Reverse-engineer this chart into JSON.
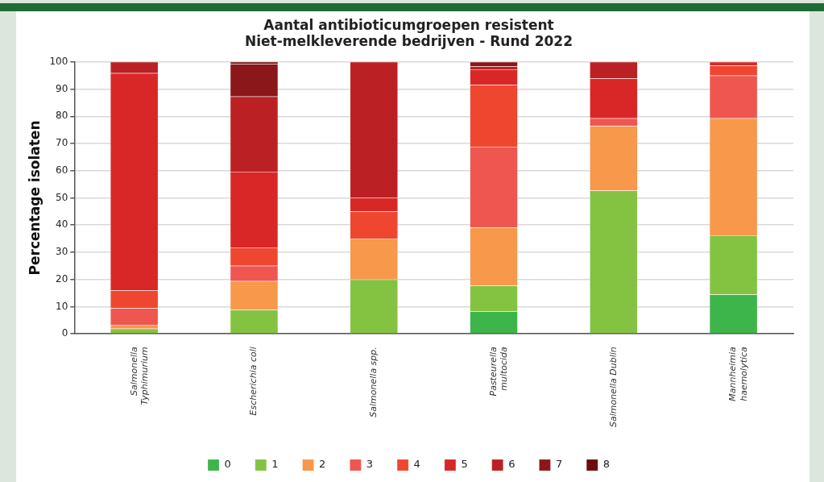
{
  "chart_data": {
    "type": "bar",
    "title": [
      "Aantal antibioticumgroepen resistent",
      "Niet-melkleverende bedrijven - Rund 2022"
    ],
    "ylabel": "Percentage isolaten",
    "categories": [
      "Salmonella Typhimurium",
      "Escherichia coli",
      "Salmonella spp.",
      "Pasteurella multocida",
      "Salmonella Dublin",
      "Mannheimia haemolytica"
    ],
    "stacked": true,
    "ylim": [
      0,
      100
    ],
    "yticks": [
      0,
      10,
      20,
      30,
      40,
      50,
      60,
      70,
      80,
      90,
      100
    ],
    "grid": "y",
    "legend": "bottom",
    "series": [
      {
        "name": "0",
        "color": "#3db54a",
        "values": [
          0,
          0,
          0,
          8.3,
          0,
          14.4
        ]
      },
      {
        "name": "1",
        "color": "#84c341",
        "values": [
          1.9,
          8.9,
          20,
          9.4,
          52.7,
          21.8
        ]
      },
      {
        "name": "2",
        "color": "#f7984b",
        "values": [
          1.4,
          10.5,
          15,
          21.4,
          23.7,
          43.1
        ]
      },
      {
        "name": "3",
        "color": "#ef5650",
        "values": [
          6.1,
          5.6,
          0,
          29.7,
          2.9,
          15.7
        ]
      },
      {
        "name": "4",
        "color": "#ef4630",
        "values": [
          6.5,
          6.8,
          10,
          22.7,
          0,
          3.7
        ]
      },
      {
        "name": "5",
        "color": "#d92727",
        "values": [
          80,
          27.8,
          5,
          5.8,
          14.6,
          1.3
        ]
      },
      {
        "name": "6",
        "color": "#bb2124",
        "values": [
          4.1,
          27.7,
          50,
          1.0,
          6.1,
          0
        ]
      },
      {
        "name": "7",
        "color": "#8b171a",
        "values": [
          0,
          11.9,
          0,
          1.7,
          0,
          0
        ]
      },
      {
        "name": "8",
        "color": "#6b0c0e",
        "values": [
          0,
          0.8,
          0,
          0,
          0,
          0
        ]
      }
    ]
  }
}
